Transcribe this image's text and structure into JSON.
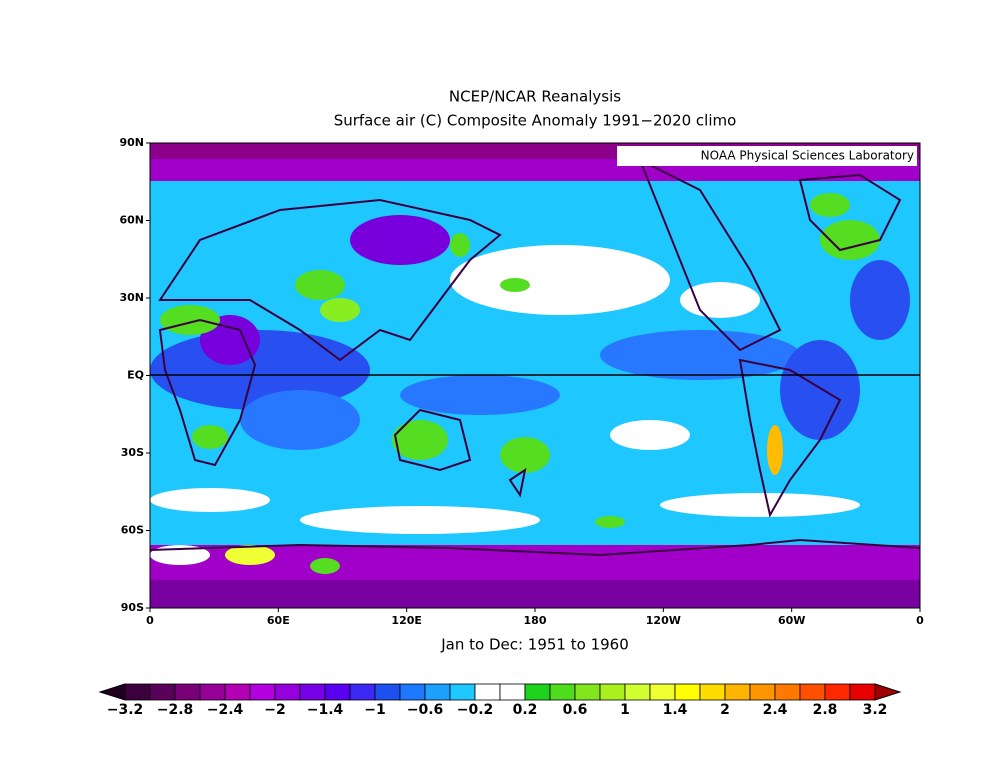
{
  "header": {
    "title": "NCEP/NCAR Reanalysis",
    "subtitle": "Surface air (C) Composite Anomaly 1991−2020 climo"
  },
  "map": {
    "credit": "NOAA Physical Sciences Laboratory",
    "lat_labels": [
      "90N",
      "60N",
      "30N",
      "EQ",
      "30S",
      "60S",
      "90S"
    ],
    "lon_labels": [
      "0",
      "60E",
      "120E",
      "180",
      "120W",
      "60W",
      "0"
    ],
    "period": "Jan to Dec: 1951 to 1960"
  },
  "colorbar": {
    "labels": [
      "−3.2",
      "−2.8",
      "−2.4",
      "−2",
      "−1.4",
      "−1",
      "−0.6",
      "−0.2",
      "0.2",
      "0.6",
      "1",
      "1.4",
      "2",
      "2.4",
      "2.8",
      "3.2"
    ]
  }
}
